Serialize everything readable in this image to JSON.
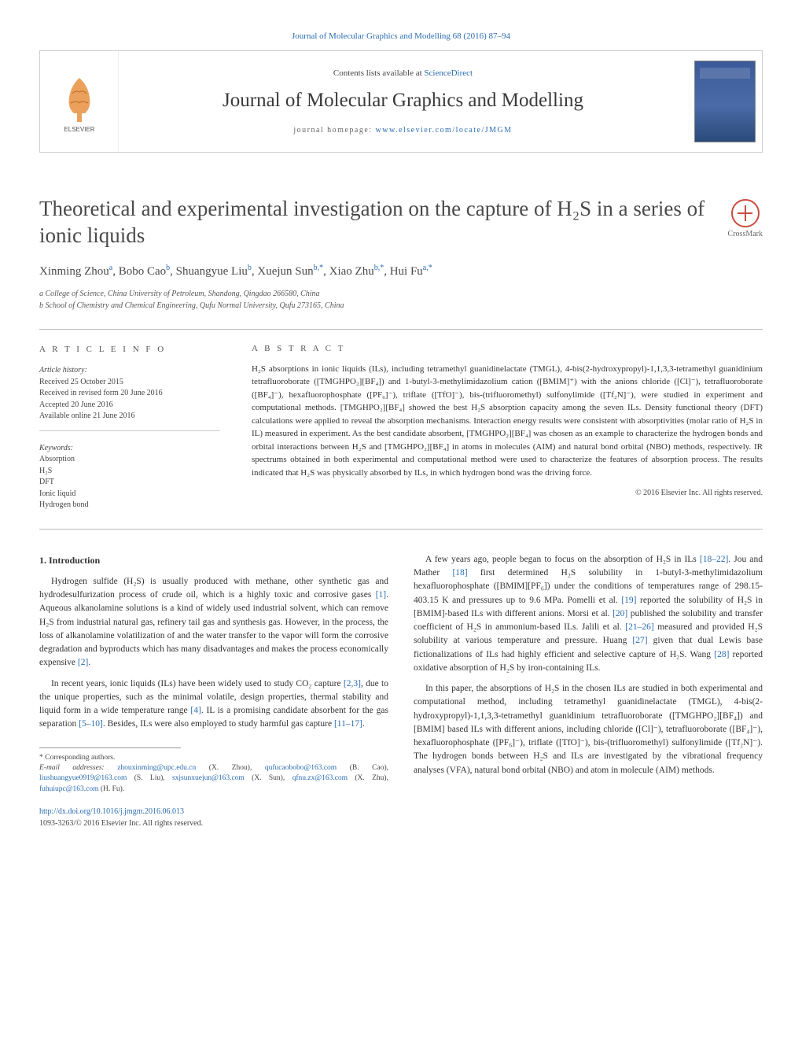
{
  "header": {
    "citation": "Journal of Molecular Graphics and Modelling 68 (2016) 87–94",
    "contents_prefix": "Contents lists available at ",
    "contents_link": "ScienceDirect",
    "journal_name": "Journal of Molecular Graphics and Modelling",
    "homepage_prefix": "journal homepage: ",
    "homepage_url": "www.elsevier.com/locate/JMGM",
    "publisher_logo_label": "ELSEVIER"
  },
  "crossmark": {
    "label": "CrossMark"
  },
  "title": "Theoretical and experimental investigation on the capture of H₂S in a series of ionic liquids",
  "authors_html": "Xinming Zhou<sup>a</sup>, Bobo Cao<sup>b</sup>, Shuangyue Liu<sup>b</sup>, Xuejun Sun<sup>b,*</sup>, Xiao Zhu<sup>b,*</sup>, Hui Fu<sup>a,*</sup>",
  "affiliations": {
    "a": "a College of Science, China University of Petroleum, Shandong, Qingdao 266580, China",
    "b": "b School of Chemistry and Chemical Engineering, Qufu Normal University, Qufu 273165, China"
  },
  "article_info": {
    "label": "A R T I C L E    I N F O",
    "history_head": "Article history:",
    "received": "Received 25 October 2015",
    "revised": "Received in revised form 20 June 2016",
    "accepted": "Accepted 20 June 2016",
    "online": "Available online 21 June 2016",
    "keywords_head": "Keywords:",
    "keywords": [
      "Absorption",
      "H₂S",
      "DFT",
      "Ionic liquid",
      "Hydrogen bond"
    ]
  },
  "abstract": {
    "label": "A B S T R A C T",
    "text": "H₂S absorptions in ionic liquids (ILs), including tetramethyl guanidinelactate (TMGL), 4-bis(2-hydroxypropyl)-1,1,3,3-tetramethyl guanidinium tetrafluoroborate ([TMGHPO₂][BF₄]) and 1-butyl-3-methylimidazolium cation ([BMIM]⁺) with the anions chloride ([Cl]⁻), tetrafluoroborate ([BF₄]⁻), hexafluorophosphate ([PF₆]⁻), triflate ([TfO]⁻), bis-(trifluoromethyl) sulfonylimide ([Tf₂N]⁻), were studied in experiment and computational methods. [TMGHPO₂][BF₄] showed the best H₂S absorption capacity among the seven ILs. Density functional theory (DFT) calculations were applied to reveal the absorption mechanisms. Interaction energy results were consistent with absorptivities (molar ratio of H₂S in IL) measured in experiment. As the best candidate absorbent, [TMGHPO₂][BF₄] was chosen as an example to characterize the hydrogen bonds and orbital interactions between H₂S and [TMGHPO₂][BF₄] in atoms in molecules (AIM) and natural bond orbital (NBO) methods, respectively. IR spectrums obtained in both experimental and computational method were used to characterize the features of absorption process. The results indicated that H₂S was physically absorbed by ILs, in which hydrogen bond was the driving force.",
    "copyright": "© 2016 Elsevier Inc. All rights reserved."
  },
  "body": {
    "intro_head": "1. Introduction",
    "left_paras": [
      "Hydrogen sulfide (H₂S) is usually produced with methane, other synthetic gas and hydrodesulfurization process of crude oil, which is a highly toxic and corrosive gases [1]. Aqueous alkanolamine solutions is a kind of widely used industrial solvent, which can remove H₂S from industrial natural gas, refinery tail gas and synthesis gas. However, in the process, the loss of alkanolamine volatilization of and the water transfer to the vapor will form the corrosive degradation and byproducts which has many disadvantages and makes the process economically expensive [2].",
      "In recent years, ionic liquids (ILs) have been widely used to study CO₂ capture [2,3], due to the unique properties, such as the minimal volatile, design properties, thermal stability and liquid form in a wide temperature range [4]. IL is a promising candidate absorbent for the gas separation [5–10]. Besides, ILs were also employed to study harmful gas capture [11–17]."
    ],
    "right_paras": [
      "A few years ago, people began to focus on the absorption of H₂S in ILs [18–22]. Jou and Mather [18] first determined H₂S solubility in 1-butyl-3-methylimidazolium hexafluorophosphate ([BMIM][PF₆]) under the conditions of temperatures range of 298.15-403.15 K and pressures up to 9.6 MPa. Pomelli et al. [19] reported the solubility of H₂S in [BMIM]-based ILs with different anions. Morsi et al. [20] published the solubility and transfer coefficient of H₂S in ammonium-based ILs. Jalili et al. [21–26] measured and provided H₂S solubility at various temperature and pressure. Huang [27] given that dual Lewis base fictionalizations of ILs had highly efficient and selective capture of H₂S. Wang [28] reported oxidative absorption of H₂S by iron-containing ILs.",
      "In this paper, the absorptions of H₂S in the chosen ILs are studied in both experimental and computational method, including tetramethyl guanidinelactate (TMGL), 4-bis(2-hydroxypropyl)-1,1,3,3-tetramethyl guanidinium tetrafluoroborate ([TMGHPO₂][BF₄]) and [BMIM] based ILs with different anions, including chloride ([Cl]⁻), tetrafluoroborate ([BF₄]⁻), hexafluorophosphate ([PF₆]⁻), triflate ([TfO]⁻), bis-(trifluoromethyl) sulfonylimide ([Tf₂N]⁻). The hydrogen bonds between H₂S and ILs are investigated by the vibrational frequency analyses (VFA), natural bond orbital (NBO) and atom in molecule (AIM) methods."
    ]
  },
  "footnotes": {
    "corr": "* Corresponding authors.",
    "emails_label": "E-mail addresses: ",
    "emails": "zhouxinming@upc.edu.cn (X. Zhou), qufucaobobo@163.com (B. Cao), liushuangyue0919@163.com (S. Liu), sxjsunxuejun@163.com (X. Sun), qfnu.zx@163.com (X. Zhu), fuhuiupc@163.com (H. Fu)."
  },
  "doi": {
    "url": "http://dx.doi.org/10.1016/j.jmgm.2016.06.013",
    "issn": "1093-3263/© 2016 Elsevier Inc. All rights reserved."
  },
  "colors": {
    "link": "#2b6cb0",
    "text": "#2a2a2a",
    "heading": "#4a4a4a",
    "rule": "#bbbbbb",
    "crossmark": "#c94d3f"
  }
}
